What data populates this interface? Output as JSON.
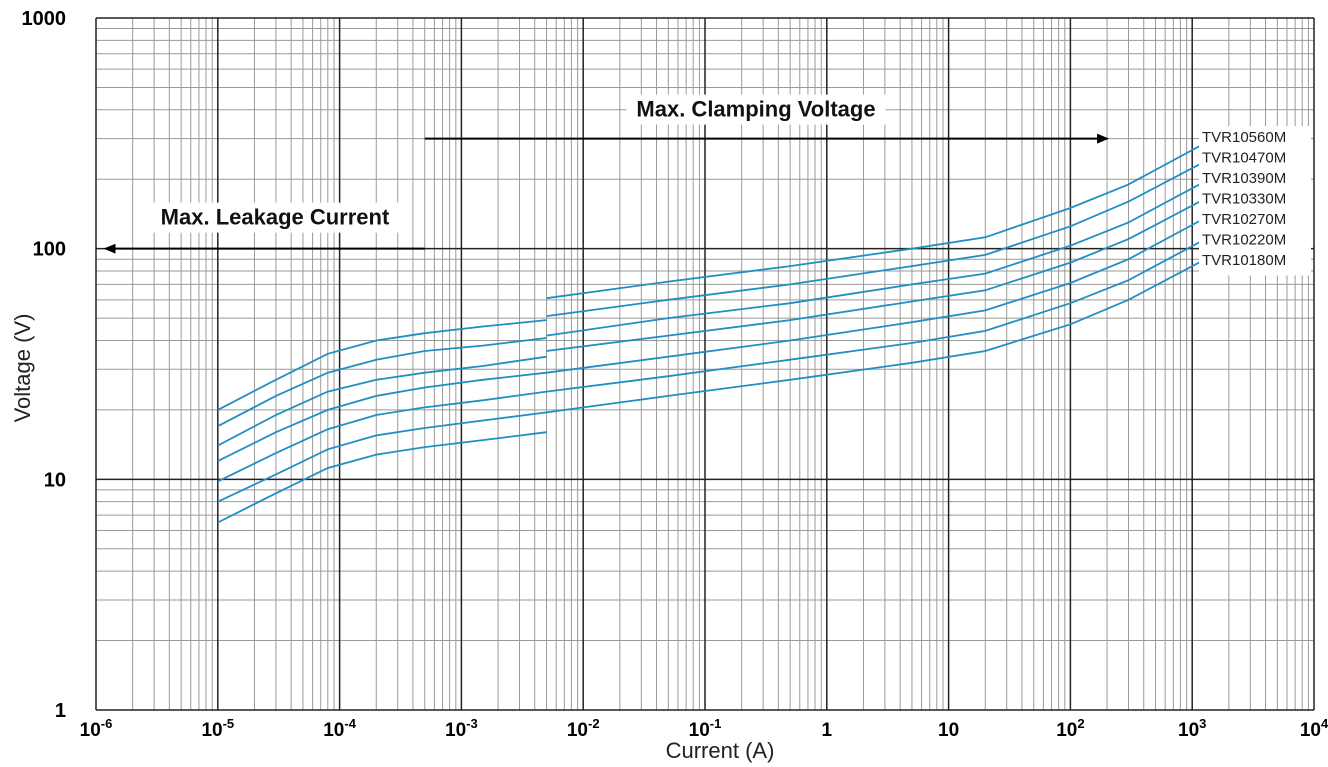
{
  "chart_data": {
    "type": "line",
    "xlabel": "Current (A)",
    "ylabel": "Voltage   (V)",
    "x_scale": "log",
    "y_scale": "log",
    "xlim": [
      1e-06,
      10000
    ],
    "ylim": [
      1,
      1000
    ],
    "grid": true,
    "x_ticks": [
      {
        "base": "10",
        "exp": "-6"
      },
      {
        "base": "10",
        "exp": "-5"
      },
      {
        "base": "10",
        "exp": "-4"
      },
      {
        "base": "10",
        "exp": "-3"
      },
      {
        "base": "10",
        "exp": "-2"
      },
      {
        "base": "10",
        "exp": "-1"
      },
      {
        "base": "1",
        "exp": ""
      },
      {
        "base": "10",
        "exp": ""
      },
      {
        "base": "10",
        "exp": "2"
      },
      {
        "base": "10",
        "exp": "3"
      },
      {
        "base": "10",
        "exp": "4"
      }
    ],
    "y_ticks": [
      "1",
      "10",
      "100",
      "1000"
    ],
    "annotations": [
      {
        "text": "Max.  Clamping  Voltage",
        "arrow": "right",
        "x_from": 0.0005,
        "x_to": 200,
        "y": 300
      },
      {
        "text": "Max. Leakage Current",
        "arrow": "left",
        "x_from": 0.0005,
        "x_to": 1.2e-06,
        "y": 100
      }
    ],
    "series": [
      {
        "name": "TVR10560M",
        "leakage": {
          "x": [
            1e-05,
            3e-05,
            8e-05,
            0.0002,
            0.0005,
            0.0015,
            0.005
          ],
          "y": [
            20,
            27,
            35,
            40,
            43,
            46,
            49
          ]
        },
        "clamping": {
          "x": [
            0.005,
            0.05,
            0.5,
            5,
            20,
            100,
            300,
            1500
          ],
          "y": [
            61,
            72,
            84,
            100,
            112,
            150,
            190,
            300
          ]
        }
      },
      {
        "name": "TVR10470M",
        "leakage": {
          "x": [
            1e-05,
            3e-05,
            8e-05,
            0.0002,
            0.0005,
            0.0015,
            0.005
          ],
          "y": [
            17,
            23,
            29,
            33,
            36,
            38,
            41
          ]
        },
        "clamping": {
          "x": [
            0.005,
            0.05,
            0.5,
            5,
            20,
            100,
            300,
            1500
          ],
          "y": [
            51,
            60,
            70,
            84,
            94,
            125,
            160,
            250
          ]
        }
      },
      {
        "name": "TVR10390M",
        "leakage": {
          "x": [
            1e-05,
            3e-05,
            8e-05,
            0.0002,
            0.0005,
            0.0015,
            0.005
          ],
          "y": [
            14,
            19,
            24,
            27,
            29,
            31,
            34
          ]
        },
        "clamping": {
          "x": [
            0.005,
            0.05,
            0.5,
            5,
            20,
            100,
            300,
            1500
          ],
          "y": [
            42,
            50,
            58,
            70,
            78,
            103,
            130,
            205
          ]
        }
      },
      {
        "name": "TVR10330M",
        "leakage": {
          "x": [
            1e-05,
            3e-05,
            8e-05,
            0.0002,
            0.0005,
            0.0015,
            0.005
          ],
          "y": [
            12,
            16,
            20,
            23,
            25,
            27,
            29
          ]
        },
        "clamping": {
          "x": [
            0.005,
            0.05,
            0.5,
            5,
            20,
            100,
            300,
            1500
          ],
          "y": [
            36,
            42,
            49,
            59,
            66,
            87,
            110,
            172
          ]
        }
      },
      {
        "name": "TVR10270M",
        "leakage": {
          "x": [
            1e-05,
            3e-05,
            8e-05,
            0.0002,
            0.0005,
            0.0015,
            0.005
          ],
          "y": [
            9.8,
            13,
            16.5,
            19,
            20.5,
            22,
            24
          ]
        },
        "clamping": {
          "x": [
            0.005,
            0.05,
            0.5,
            5,
            20,
            100,
            300,
            1500
          ],
          "y": [
            29,
            34,
            40,
            48,
            54,
            71,
            90,
            142
          ]
        }
      },
      {
        "name": "TVR10220M",
        "leakage": {
          "x": [
            1e-05,
            3e-05,
            8e-05,
            0.0002,
            0.0005,
            0.0015,
            0.005
          ],
          "y": [
            8,
            10.5,
            13.5,
            15.5,
            16.7,
            18,
            19.5
          ]
        },
        "clamping": {
          "x": [
            0.005,
            0.05,
            0.5,
            5,
            20,
            100,
            300,
            1500
          ],
          "y": [
            24,
            28,
            33,
            39,
            44,
            58,
            73,
            115
          ]
        }
      },
      {
        "name": "TVR10180M",
        "leakage": {
          "x": [
            1e-05,
            3e-05,
            8e-05,
            0.0002,
            0.0005,
            0.0015,
            0.005
          ],
          "y": [
            6.5,
            8.7,
            11.2,
            12.8,
            13.8,
            14.8,
            16
          ]
        },
        "clamping": {
          "x": [
            0.005,
            0.05,
            0.5,
            5,
            20,
            100,
            300,
            1500
          ],
          "y": [
            19.5,
            23,
            27,
            32,
            36,
            47,
            60,
            94
          ]
        }
      }
    ]
  },
  "colors": {
    "series_line": "#1f8fc4",
    "grid_major": "#222222",
    "grid_minor": "#9a9a9a",
    "annotation": "#000000"
  }
}
